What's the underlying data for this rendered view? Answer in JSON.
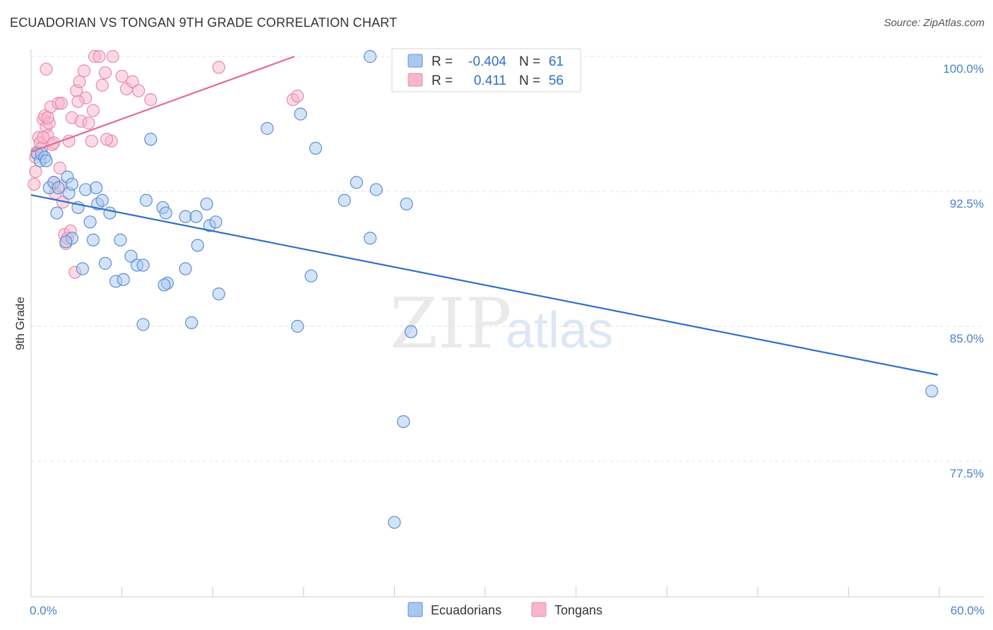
{
  "header": {
    "title": "ECUADORIAN VS TONGAN 9TH GRADE CORRELATION CHART",
    "source": "Source: ZipAtlas.com"
  },
  "colors": {
    "blue_fill": "#a9c8f0",
    "blue_stroke": "#5b8fd6",
    "blue_line": "#2f6fc9",
    "pink_fill": "#f7b6cb",
    "pink_stroke": "#e98aaa",
    "pink_line": "#e36a94",
    "axis_label": "#4a7fcf",
    "grid": "#e3e3e3"
  },
  "legend": {
    "rows": [
      {
        "r_label": "R =",
        "r_value": "-0.404",
        "n_label": "N =",
        "n_value": "61"
      },
      {
        "r_label": "R =",
        "r_value": "0.411",
        "n_label": "N =",
        "n_value": "56"
      }
    ]
  },
  "bottom_legend": {
    "items": [
      "Ecuadorians",
      "Tongans"
    ]
  },
  "watermark": {
    "zip": "ZIP",
    "atlas": "atlas"
  },
  "chart_data": {
    "type": "scatter",
    "title": "ECUADORIAN VS TONGAN 9TH GRADE CORRELATION CHART",
    "xlabel": "",
    "ylabel": "9th Grade",
    "xlim": [
      0,
      60
    ],
    "ylim": [
      70.0,
      101.5
    ],
    "x_tick_labels": [
      "0.0%",
      "60.0%"
    ],
    "y_ticks": [
      100.0,
      92.5,
      85.0,
      77.5
    ],
    "y_tick_labels": [
      "100.0%",
      "92.5%",
      "85.0%",
      "77.5%"
    ],
    "grid": true,
    "legend_position": "top-center",
    "series": [
      {
        "name": "Ecuadorians",
        "r": -0.404,
        "n": 61,
        "trend": {
          "x": [
            0.0,
            59.9
          ],
          "y": [
            92.3,
            82.3
          ]
        },
        "points": [
          [
            0.4,
            94.6
          ],
          [
            0.6,
            94.2
          ],
          [
            0.7,
            94.6
          ],
          [
            0.9,
            94.4
          ],
          [
            1.0,
            94.2
          ],
          [
            1.2,
            92.7
          ],
          [
            1.5,
            93.0
          ],
          [
            1.8,
            92.7
          ],
          [
            2.4,
            93.3
          ],
          [
            2.5,
            92.4
          ],
          [
            2.7,
            92.9
          ],
          [
            1.7,
            91.3
          ],
          [
            3.1,
            91.6
          ],
          [
            3.6,
            92.6
          ],
          [
            4.3,
            92.7
          ],
          [
            4.4,
            91.8
          ],
          [
            4.7,
            92.0
          ],
          [
            5.2,
            91.3
          ],
          [
            3.9,
            90.8
          ],
          [
            4.1,
            89.8
          ],
          [
            2.7,
            89.9
          ],
          [
            2.3,
            89.7
          ],
          [
            3.4,
            88.2
          ],
          [
            4.9,
            88.5
          ],
          [
            5.6,
            87.5
          ],
          [
            6.1,
            87.6
          ],
          [
            6.6,
            88.9
          ],
          [
            7.0,
            88.4
          ],
          [
            7.4,
            88.4
          ],
          [
            5.9,
            89.8
          ],
          [
            7.6,
            92.0
          ],
          [
            7.9,
            95.4
          ],
          [
            8.7,
            91.6
          ],
          [
            8.9,
            91.3
          ],
          [
            9.0,
            87.4
          ],
          [
            8.8,
            87.3
          ],
          [
            10.2,
            91.1
          ],
          [
            10.9,
            91.1
          ],
          [
            11.0,
            89.5
          ],
          [
            11.6,
            91.8
          ],
          [
            11.8,
            90.6
          ],
          [
            12.2,
            90.8
          ],
          [
            12.4,
            86.8
          ],
          [
            10.2,
            88.2
          ],
          [
            15.6,
            96.0
          ],
          [
            17.8,
            96.8
          ],
          [
            18.8,
            94.9
          ],
          [
            18.5,
            87.8
          ],
          [
            17.6,
            85.0
          ],
          [
            10.6,
            85.2
          ],
          [
            7.4,
            85.1
          ],
          [
            20.7,
            92.0
          ],
          [
            21.5,
            93.0
          ],
          [
            22.8,
            92.6
          ],
          [
            24.8,
            91.8
          ],
          [
            22.4,
            100.0
          ],
          [
            22.4,
            89.9
          ],
          [
            25.1,
            84.7
          ],
          [
            59.5,
            81.4
          ],
          [
            24.6,
            79.7
          ],
          [
            24.0,
            74.1
          ]
        ]
      },
      {
        "name": "Tongans",
        "r": 0.411,
        "n": 56,
        "trend": {
          "x": [
            0.0,
            17.4
          ],
          "y": [
            94.7,
            100.0
          ]
        },
        "points": [
          [
            0.2,
            92.9
          ],
          [
            0.3,
            93.6
          ],
          [
            0.4,
            94.7
          ],
          [
            0.5,
            95.5
          ],
          [
            0.6,
            95.2
          ],
          [
            0.7,
            94.9
          ],
          [
            0.8,
            96.5
          ],
          [
            0.9,
            96.7
          ],
          [
            1.0,
            96.1
          ],
          [
            1.1,
            95.6
          ],
          [
            1.2,
            96.3
          ],
          [
            1.3,
            97.2
          ],
          [
            1.4,
            95.1
          ],
          [
            1.5,
            93.0
          ],
          [
            1.6,
            92.4
          ],
          [
            1.8,
            97.4
          ],
          [
            1.9,
            93.8
          ],
          [
            2.0,
            92.8
          ],
          [
            2.1,
            91.9
          ],
          [
            2.2,
            90.1
          ],
          [
            2.3,
            89.6
          ],
          [
            2.4,
            89.9
          ],
          [
            2.5,
            95.3
          ],
          [
            2.7,
            96.6
          ],
          [
            2.9,
            88.0
          ],
          [
            3.0,
            98.1
          ],
          [
            3.2,
            98.6
          ],
          [
            3.3,
            96.4
          ],
          [
            3.5,
            99.2
          ],
          [
            3.6,
            97.7
          ],
          [
            3.8,
            96.3
          ],
          [
            4.0,
            95.3
          ],
          [
            4.1,
            97.0
          ],
          [
            4.2,
            100.0
          ],
          [
            4.5,
            100.0
          ],
          [
            4.7,
            98.4
          ],
          [
            4.9,
            99.1
          ],
          [
            5.3,
            95.3
          ],
          [
            5.4,
            100.0
          ],
          [
            6.0,
            98.9
          ],
          [
            6.3,
            98.2
          ],
          [
            6.7,
            98.6
          ],
          [
            7.1,
            98.1
          ],
          [
            7.9,
            97.6
          ],
          [
            1.0,
            99.3
          ],
          [
            12.4,
            99.4
          ],
          [
            17.3,
            97.6
          ],
          [
            17.6,
            97.8
          ],
          [
            2.0,
            97.4
          ],
          [
            0.8,
            95.5
          ],
          [
            1.5,
            95.2
          ],
          [
            2.6,
            90.3
          ],
          [
            0.3,
            94.4
          ],
          [
            1.1,
            96.6
          ],
          [
            3.1,
            97.5
          ],
          [
            5.0,
            95.4
          ]
        ]
      }
    ]
  }
}
